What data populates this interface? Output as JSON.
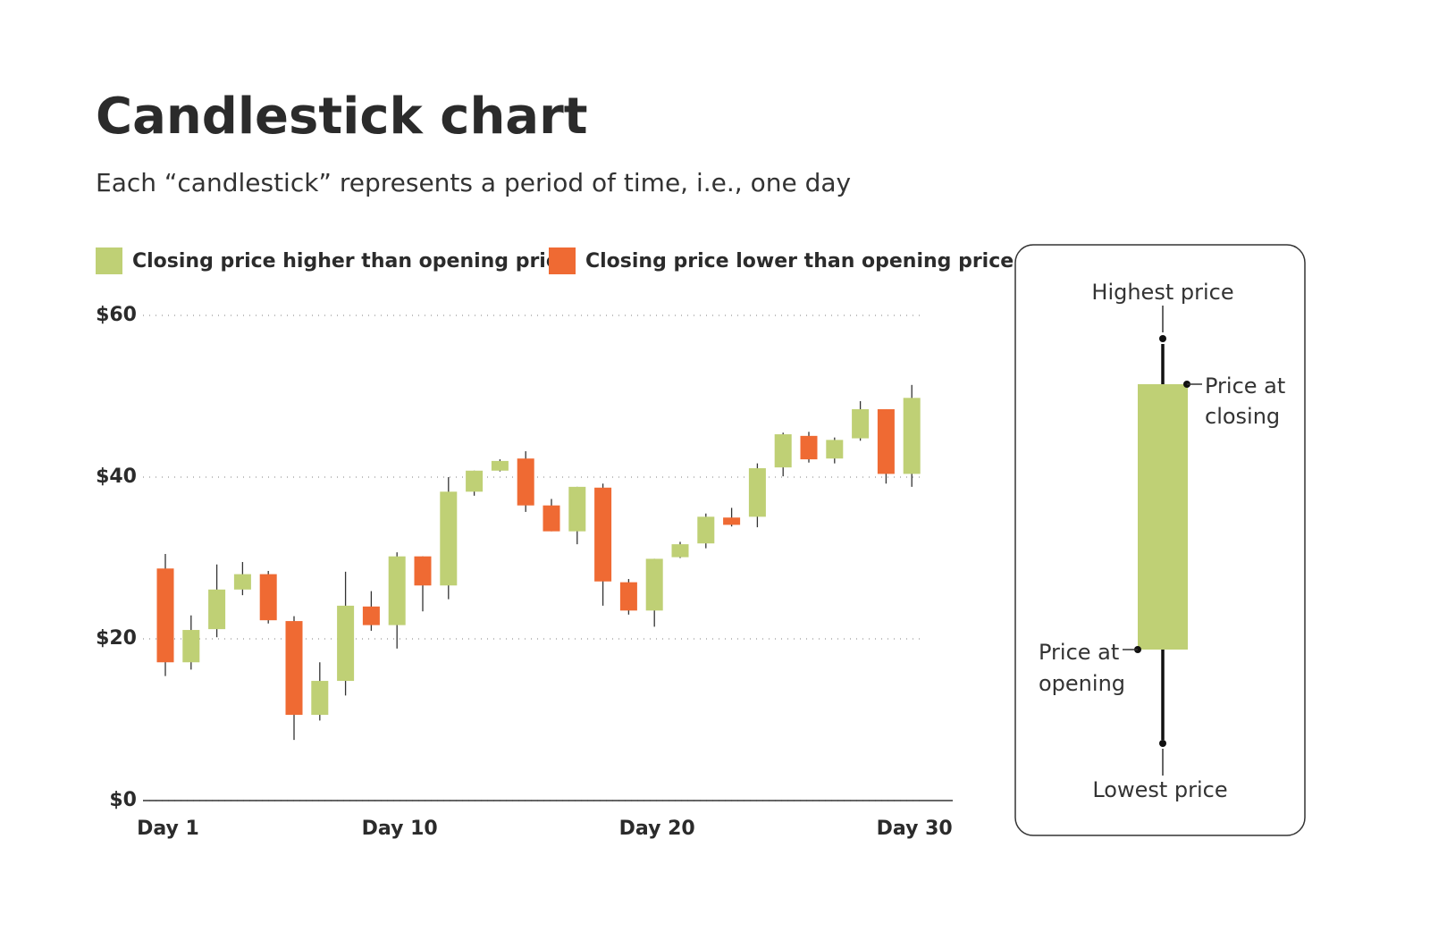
{
  "chart_data": {
    "type": "candlestick",
    "title": "Candlestick chart",
    "subtitle": "Each “candlestick” represents a period of time, i.e., one day",
    "up_label": "Closing price higher than opening price",
    "down_label": "Closing price lower than opening price",
    "up_color": "#bfd075",
    "down_color": "#ef6a33",
    "categories": [
      "Day 1",
      null,
      null,
      null,
      null,
      null,
      null,
      null,
      null,
      "Day 10",
      null,
      null,
      null,
      null,
      null,
      null,
      null,
      null,
      null,
      "Day 20",
      null,
      null,
      null,
      null,
      null,
      null,
      null,
      null,
      null,
      "Day 30"
    ],
    "open": [
      28.7,
      17.1,
      21.2,
      26.1,
      28.0,
      22.2,
      10.6,
      14.8,
      24.0,
      21.7,
      30.2,
      26.6,
      38.2,
      40.8,
      42.3,
      36.5,
      33.3,
      38.7,
      27.0,
      23.5,
      30.1,
      31.8,
      35.0,
      35.1,
      41.2,
      45.1,
      42.3,
      44.8,
      48.4,
      40.4
    ],
    "high": [
      30.5,
      22.9,
      29.2,
      29.5,
      28.4,
      22.8,
      17.1,
      28.3,
      25.9,
      30.7,
      30.2,
      40.0,
      40.8,
      42.2,
      43.2,
      37.3,
      38.8,
      39.2,
      27.4,
      29.9,
      32.0,
      35.5,
      36.2,
      41.7,
      45.5,
      45.6,
      44.9,
      49.4,
      48.4,
      51.4
    ],
    "low": [
      15.4,
      16.2,
      20.2,
      25.4,
      21.9,
      7.5,
      9.9,
      13.0,
      21.0,
      18.8,
      23.4,
      24.9,
      37.7,
      40.7,
      35.7,
      33.3,
      31.7,
      24.1,
      23.0,
      21.5,
      30.0,
      31.2,
      33.9,
      33.8,
      40.1,
      41.8,
      41.7,
      44.5,
      39.2,
      38.8
    ],
    "close": [
      17.1,
      21.1,
      26.1,
      28.0,
      22.3,
      10.6,
      14.8,
      24.1,
      21.7,
      30.2,
      26.6,
      38.2,
      40.8,
      42.0,
      36.5,
      33.3,
      38.8,
      27.1,
      23.5,
      29.9,
      31.7,
      35.1,
      34.1,
      41.1,
      45.3,
      42.2,
      44.6,
      48.4,
      40.4,
      49.8
    ],
    "ylim": [
      0,
      60
    ],
    "yticks": [
      {
        "value": 0,
        "label": "$0"
      },
      {
        "value": 20,
        "label": "$20"
      },
      {
        "value": 40,
        "label": "$40"
      },
      {
        "value": 60,
        "label": "$60"
      }
    ],
    "grid": true,
    "explainer": {
      "high": "Highest price",
      "close": [
        "Price at",
        "closing"
      ],
      "open": [
        "Price at",
        "opening"
      ],
      "low": "Lowest price"
    }
  }
}
